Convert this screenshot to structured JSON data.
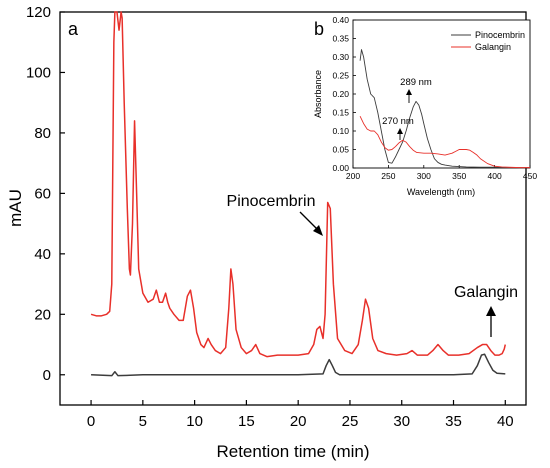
{
  "chart_data": [
    {
      "panel": "a",
      "type": "line",
      "xlabel": "Retention time (min)",
      "ylabel": "mAU",
      "xlim": [
        -3,
        42
      ],
      "ylim": [
        -10,
        120
      ],
      "xticks": [
        "0",
        "5",
        "10",
        "15",
        "20",
        "25",
        "30",
        "35",
        "40"
      ],
      "yticks": [
        "0",
        "20",
        "40",
        "60",
        "80",
        "100",
        "120"
      ],
      "series": [
        {
          "color": "#e8302a",
          "x": [
            0,
            0.5,
            1,
            1.5,
            1.8,
            2.0,
            2.1,
            2.2,
            2.3,
            2.5,
            2.7,
            2.9,
            3.0,
            3.2,
            3.5,
            3.7,
            3.8,
            4.0,
            4.2,
            4.4,
            4.6,
            5.0,
            5.5,
            6.0,
            6.3,
            6.6,
            6.9,
            7.2,
            7.4,
            7.6,
            8.0,
            8.5,
            8.9,
            9.3,
            9.6,
            9.9,
            10.2,
            10.6,
            10.9,
            11.3,
            11.6,
            12.0,
            12.5,
            13.0,
            13.3,
            13.5,
            13.7,
            14.0,
            14.5,
            15.0,
            15.5,
            15.9,
            16.3,
            17.0,
            18.0,
            19.0,
            20.0,
            21.0,
            21.5,
            21.8,
            22.1,
            22.4,
            22.6,
            22.85,
            23.1,
            23.4,
            23.8,
            24.5,
            25.2,
            25.8,
            26.2,
            26.5,
            26.8,
            27.2,
            27.7,
            28.5,
            29.5,
            30.5,
            31.0,
            31.5,
            32.5,
            33.0,
            33.5,
            34.0,
            34.5,
            35.5,
            36.5,
            37.3,
            37.8,
            38.2,
            38.6,
            39.0,
            39.4,
            39.7,
            39.9,
            40.0
          ],
          "y": [
            20,
            19.5,
            19.5,
            20,
            21,
            30,
            70,
            110,
            120,
            120,
            114,
            120,
            118,
            90,
            55,
            35,
            33,
            50,
            84,
            60,
            35,
            27,
            24,
            25,
            28,
            24,
            24,
            27,
            24,
            22,
            20,
            18,
            18,
            26,
            28,
            22,
            14,
            10,
            9,
            12,
            10,
            8,
            7,
            9,
            22,
            35,
            30,
            15,
            9,
            7,
            8,
            10,
            7,
            6,
            6.5,
            6.5,
            6.5,
            7,
            10,
            15,
            16,
            12,
            20,
            57,
            55,
            30,
            12,
            8,
            7,
            10,
            18,
            25,
            22,
            12,
            8,
            7,
            6.5,
            7,
            8,
            6.5,
            6.5,
            8,
            10,
            8,
            6.5,
            6.5,
            7,
            9,
            10,
            10,
            8,
            6.5,
            6.5,
            7,
            8.5,
            10
          ]
        },
        {
          "color": "#3c3c3c",
          "x": [
            0,
            2,
            2.3,
            2.6,
            5,
            10,
            15,
            20,
            22.4,
            22.7,
            23.0,
            23.3,
            23.6,
            24,
            26,
            30,
            35,
            36.8,
            37.3,
            37.7,
            38.0,
            38.4,
            38.8,
            39.2,
            40
          ],
          "y": [
            0,
            -0.3,
            1,
            -0.3,
            0,
            0,
            0,
            0,
            0.3,
            3,
            5,
            3,
            0.8,
            0,
            0,
            0,
            0,
            0.3,
            3,
            6.5,
            6.8,
            4,
            1.5,
            0.5,
            0.3
          ]
        }
      ],
      "annotations": [
        {
          "text": "Pinocembrin"
        },
        {
          "text": "Galangin"
        }
      ]
    },
    {
      "panel": "b",
      "type": "line",
      "xlabel": "Wavelength (nm)",
      "ylabel": "Absorbance",
      "xlim": [
        200,
        450
      ],
      "ylim": [
        0,
        0.4
      ],
      "xticks": [
        "200",
        "250",
        "300",
        "350",
        "400",
        "450"
      ],
      "yticks": [
        "0.00",
        "0.05",
        "0.10",
        "0.15",
        "0.20",
        "0.25",
        "0.30",
        "0.35",
        "0.40"
      ],
      "legend_position": "top-right",
      "series": [
        {
          "name": "Pinocembrin",
          "color": "#3c3c3c",
          "x": [
            210,
            212,
            215,
            220,
            225,
            230,
            235,
            240,
            245,
            250,
            255,
            260,
            265,
            270,
            275,
            280,
            285,
            289,
            293,
            297,
            300,
            305,
            310,
            315,
            320,
            325,
            330,
            340,
            350,
            360,
            380,
            400,
            420,
            450
          ],
          "y": [
            0.29,
            0.32,
            0.3,
            0.24,
            0.2,
            0.19,
            0.15,
            0.1,
            0.05,
            0.015,
            0.013,
            0.03,
            0.05,
            0.07,
            0.1,
            0.135,
            0.165,
            0.18,
            0.17,
            0.145,
            0.12,
            0.08,
            0.05,
            0.025,
            0.015,
            0.01,
            0.008,
            0.005,
            0.004,
            0.003,
            0.002,
            0.002,
            0.001,
            0.001
          ]
        },
        {
          "name": "Galangin",
          "color": "#e8302a",
          "x": [
            210,
            215,
            220,
            225,
            230,
            235,
            240,
            245,
            250,
            255,
            260,
            265,
            270,
            275,
            280,
            285,
            290,
            300,
            310,
            320,
            330,
            340,
            345,
            350,
            355,
            360,
            365,
            370,
            375,
            380,
            390,
            400,
            410,
            420,
            435,
            450
          ],
          "y": [
            0.14,
            0.12,
            0.105,
            0.1,
            0.1,
            0.09,
            0.07,
            0.055,
            0.048,
            0.05,
            0.058,
            0.068,
            0.075,
            0.07,
            0.058,
            0.048,
            0.042,
            0.04,
            0.04,
            0.038,
            0.035,
            0.04,
            0.045,
            0.05,
            0.05,
            0.05,
            0.048,
            0.042,
            0.035,
            0.025,
            0.012,
            0.005,
            0.003,
            0.002,
            0.001,
            0.001
          ]
        }
      ],
      "annotations": [
        {
          "text": "289 nm"
        },
        {
          "text": "270 nm"
        }
      ]
    }
  ]
}
